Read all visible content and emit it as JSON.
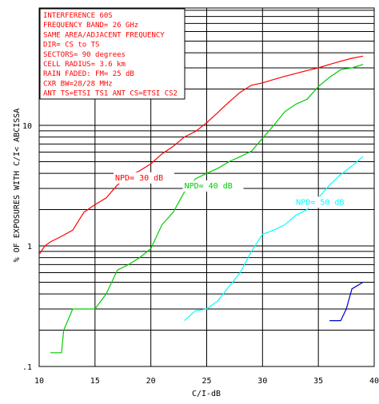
{
  "chart_data": {
    "type": "line",
    "title": "",
    "xlabel": "C/I-dB",
    "ylabel": "% OF EXPOSURES WITH C/I< ABCISSA",
    "xlim": [
      10,
      40
    ],
    "ylim": [
      0.1,
      30
    ],
    "yscale": "log",
    "grid": true,
    "x_ticks": [
      "10",
      "15",
      "20",
      "25",
      "30",
      "35",
      "40"
    ],
    "y_ticks": [
      ".1",
      "1",
      "10"
    ],
    "annotation_lines": [
      "INTERFERENCE 60S",
      "FREQUENCY BAND= 26 GHz",
      "SAME AREA/ADJACENT FREQUENCY",
      "DIR= CS to TS",
      "SECTORS= 90 degrees",
      "CELL RADIUS= 3.6 km",
      "RAIN FADED: FM= 25 dB",
      "CXR BW=28/28 MHz",
      "ANT TS=ETSI TS1 ANT CS=ETSI CS2"
    ],
    "series": [
      {
        "name": "NPD= 30 dB",
        "color": "#ff0000",
        "label_at": [
          16.8,
          3.5
        ],
        "points": [
          [
            10,
            0.85
          ],
          [
            10.5,
            1.0
          ],
          [
            11,
            1.08
          ],
          [
            12,
            1.2
          ],
          [
            13,
            1.35
          ],
          [
            14,
            1.9
          ],
          [
            15,
            2.2
          ],
          [
            16,
            2.5
          ],
          [
            17,
            3.2
          ],
          [
            18,
            3.8
          ],
          [
            19,
            4.2
          ],
          [
            20,
            4.8
          ],
          [
            21,
            5.8
          ],
          [
            22,
            6.7
          ],
          [
            23,
            8.0
          ],
          [
            24,
            8.9
          ],
          [
            25,
            10.5
          ],
          [
            26,
            12.8
          ],
          [
            27,
            15.6
          ],
          [
            28,
            18.8
          ],
          [
            29,
            21.5
          ],
          [
            30,
            22.5
          ],
          [
            31,
            24.0
          ],
          [
            32,
            25.5
          ],
          [
            33,
            27.0
          ],
          [
            34,
            28.5
          ],
          [
            35,
            30.0
          ],
          [
            36,
            32.0
          ],
          [
            37,
            34.0
          ],
          [
            38,
            36.0
          ],
          [
            39,
            37.5
          ]
        ]
      },
      {
        "name": "NPD= 40 dB",
        "color": "#00cc00",
        "label_at": [
          23.0,
          3.0
        ],
        "points": [
          [
            11,
            0.13
          ],
          [
            12,
            0.13
          ],
          [
            12.2,
            0.2
          ],
          [
            13,
            0.3
          ],
          [
            14,
            0.3
          ],
          [
            15,
            0.3
          ],
          [
            16,
            0.4
          ],
          [
            17,
            0.63
          ],
          [
            18,
            0.7
          ],
          [
            19,
            0.8
          ],
          [
            20,
            0.95
          ],
          [
            21,
            1.5
          ],
          [
            22,
            1.9
          ],
          [
            23,
            2.8
          ],
          [
            24,
            3.6
          ],
          [
            25,
            4.0
          ],
          [
            26,
            4.4
          ],
          [
            27,
            5.0
          ],
          [
            28,
            5.5
          ],
          [
            29,
            6.1
          ],
          [
            30,
            7.8
          ],
          [
            31,
            10.0
          ],
          [
            32,
            13.0
          ],
          [
            33,
            15.0
          ],
          [
            34,
            16.5
          ],
          [
            35,
            21.0
          ],
          [
            36,
            25.0
          ],
          [
            37,
            29.0
          ],
          [
            38,
            30.0
          ],
          [
            39,
            32.0
          ]
        ]
      },
      {
        "name": "NPD= 50 dB",
        "color": "#00ffff",
        "label_at": [
          33.0,
          2.2
        ],
        "points": [
          [
            23,
            0.24
          ],
          [
            24,
            0.29
          ],
          [
            25,
            0.3
          ],
          [
            26,
            0.35
          ],
          [
            27,
            0.46
          ],
          [
            28,
            0.6
          ],
          [
            29,
            0.9
          ],
          [
            30,
            1.25
          ],
          [
            31,
            1.35
          ],
          [
            32,
            1.5
          ],
          [
            33,
            1.8
          ],
          [
            34,
            2.0
          ],
          [
            35,
            2.5
          ],
          [
            36,
            3.2
          ],
          [
            37,
            3.9
          ],
          [
            38,
            4.6
          ],
          [
            39,
            5.5
          ]
        ]
      },
      {
        "name": "",
        "color": "#0000cc",
        "points": [
          [
            36,
            0.24
          ],
          [
            37,
            0.24
          ],
          [
            37.5,
            0.3
          ],
          [
            38,
            0.44
          ],
          [
            39,
            0.5
          ]
        ]
      }
    ]
  }
}
